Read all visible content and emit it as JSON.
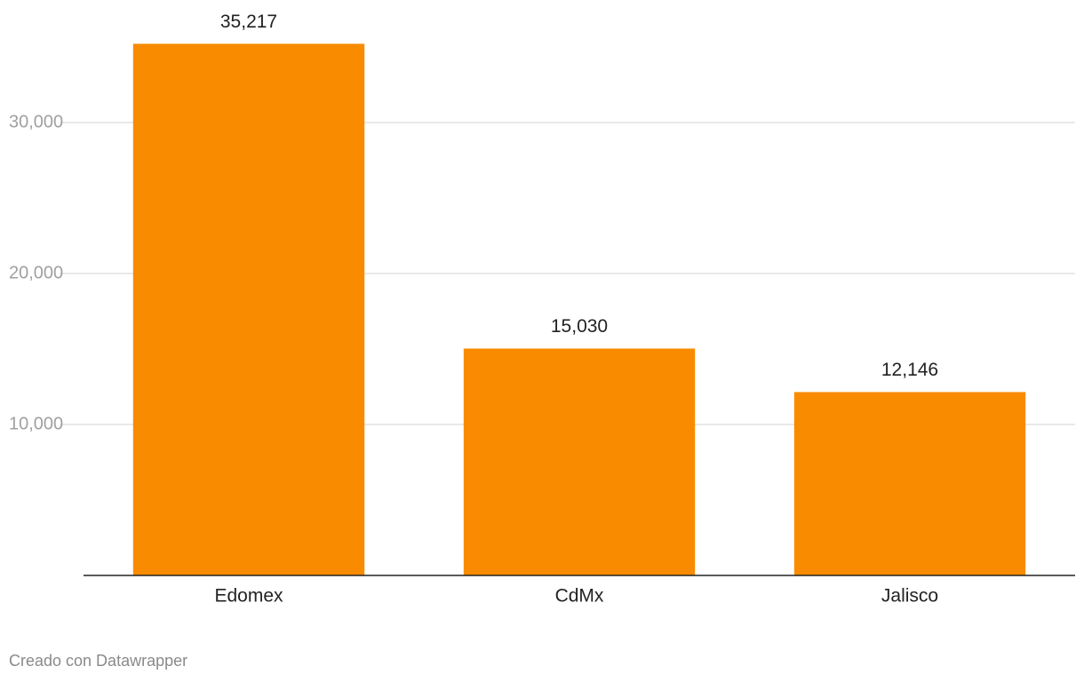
{
  "chart_data": {
    "type": "bar",
    "categories": [
      "Edomex",
      "CdMx",
      "Jalisco"
    ],
    "values": [
      35217,
      15030,
      12146
    ],
    "value_labels": [
      "35,217",
      "15,030",
      "12,146"
    ],
    "color": "#f98b01",
    "ylim": [
      0,
      36000
    ],
    "yticks": [
      {
        "value": 10000,
        "label": "10,000"
      },
      {
        "value": 20000,
        "label": "20,000"
      },
      {
        "value": 30000,
        "label": "30,000"
      }
    ],
    "grid": true,
    "credit": "Creado con Datawrapper"
  }
}
